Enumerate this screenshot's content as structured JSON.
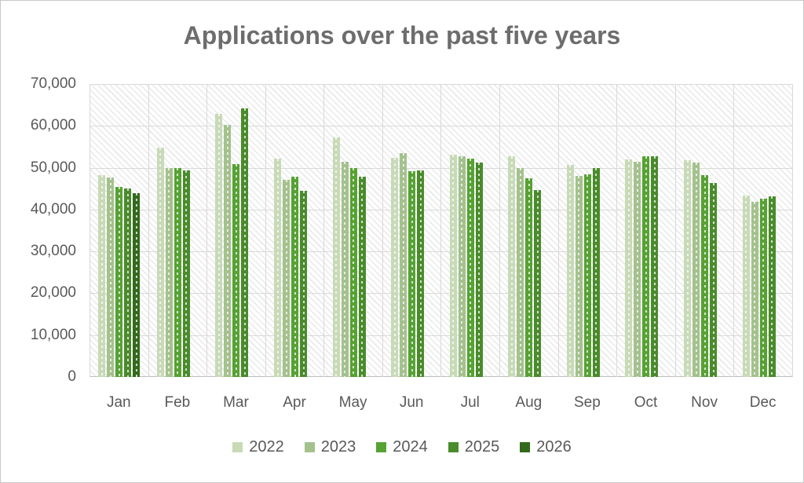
{
  "chart": {
    "gridline_color": "#d9d9d9",
    "axis_line_color": "#bfbfbf",
    "axis_text_color": "#595959",
    "title_color": "#6d6d6d",
    "plot_background_pattern": "light-diagonal-hatch"
  },
  "chart_data": {
    "type": "bar",
    "title": "Applications over the past five years",
    "categories": [
      "Jan",
      "Feb",
      "Mar",
      "Apr",
      "May",
      "Jun",
      "Jul",
      "Aug",
      "Sep",
      "Oct",
      "Nov",
      "Dec"
    ],
    "series": [
      {
        "name": "2022",
        "color": "#c8dab6",
        "values": [
          48300,
          54800,
          62900,
          52100,
          57300,
          52400,
          53200,
          52700,
          50600,
          52000,
          51800,
          43400
        ]
      },
      {
        "name": "2023",
        "color": "#a4c18e",
        "values": [
          47700,
          50000,
          60200,
          47200,
          51500,
          53500,
          52800,
          49900,
          48100,
          51400,
          51200,
          41800
        ]
      },
      {
        "name": "2024",
        "color": "#56a233",
        "values": [
          45400,
          50000,
          50900,
          47900,
          50000,
          49100,
          52200,
          47400,
          48500,
          52800,
          48200,
          42600
        ]
      },
      {
        "name": "2025",
        "color": "#4a8b2c",
        "values": [
          45100,
          49400,
          64200,
          44500,
          47800,
          49400,
          51300,
          44600,
          50000,
          52800,
          46400,
          43200
        ]
      },
      {
        "name": "2026",
        "color": "#34691c",
        "values": [
          44000,
          null,
          null,
          null,
          null,
          null,
          null,
          null,
          null,
          null,
          null,
          null
        ]
      }
    ],
    "xlabel": "",
    "ylabel": "",
    "ylim": [
      0,
      70000
    ],
    "y_tick_labels": [
      "70,000",
      "60,000",
      "50,000",
      "40,000",
      "30,000",
      "20,000",
      "10,000",
      "0"
    ],
    "grid": true,
    "legend_position": "bottom",
    "legend_entries": [
      "2022",
      "2023",
      "2024",
      "2025",
      "2026"
    ]
  }
}
